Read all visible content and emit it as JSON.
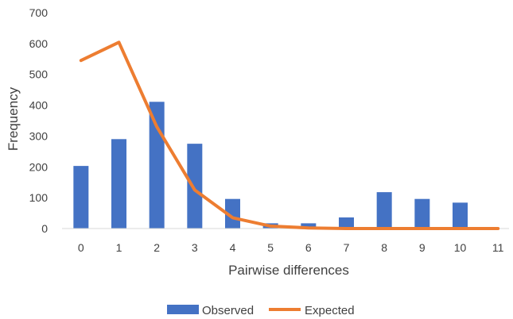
{
  "chart_data": {
    "type": "bar",
    "title": "",
    "xlabel": "Pairwise differences",
    "ylabel": "Frequency",
    "categories": [
      "0",
      "1",
      "2",
      "3",
      "4",
      "5",
      "6",
      "7",
      "8",
      "9",
      "10",
      "11"
    ],
    "ylim": [
      0,
      700
    ],
    "yticks": [
      "0",
      "100",
      "200",
      "300",
      "400",
      "500",
      "600",
      "700"
    ],
    "grid": false,
    "legend_position": "bottom",
    "series": [
      {
        "name": "Observed",
        "type": "bar",
        "color": "#4472C4",
        "values": [
          203,
          290,
          411,
          275,
          96,
          17,
          17,
          36,
          118,
          96,
          84,
          0
        ]
      },
      {
        "name": "Expected",
        "type": "line",
        "color": "#ED7D31",
        "values": [
          545,
          604,
          330,
          125,
          35,
          8,
          2,
          0,
          0,
          0,
          0,
          0
        ]
      }
    ]
  }
}
